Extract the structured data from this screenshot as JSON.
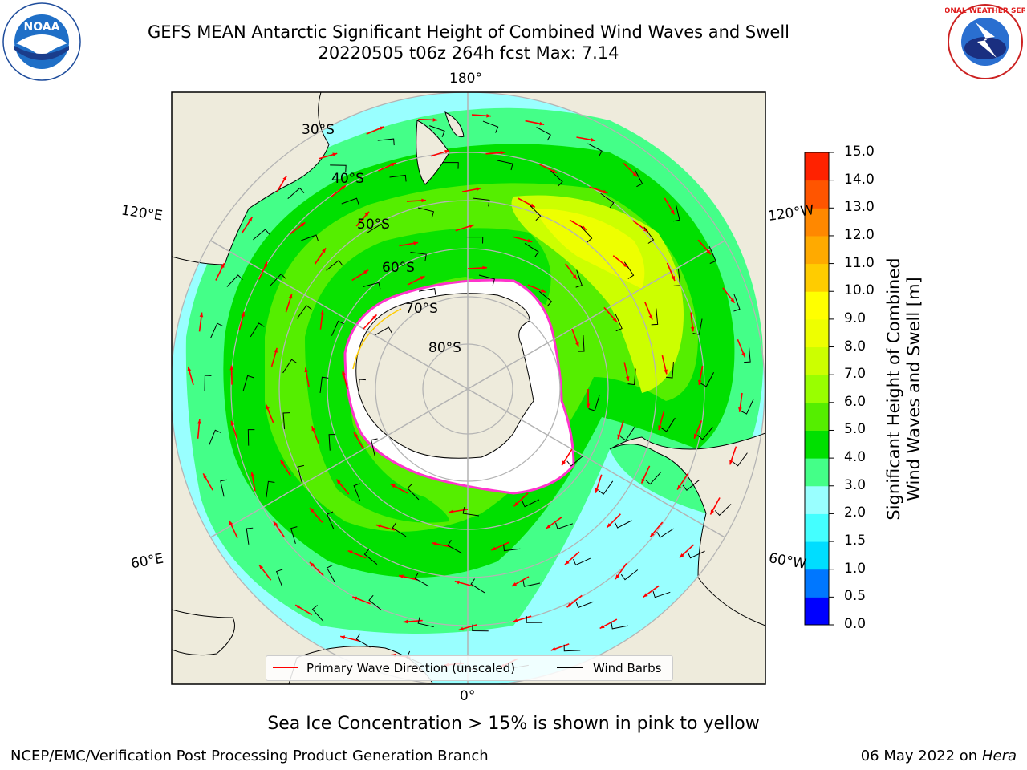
{
  "title": {
    "line1": "GEFS MEAN Antarctic Significant Height of Combined Wind Waves and Swell",
    "line2": "20220505 t06z 264h fcst   Max: 7.14"
  },
  "logos": {
    "noaa": "NOAA",
    "nws": "NATIONAL WEATHER SERVICE"
  },
  "map": {
    "projection": "south-polar-stereographic",
    "lat_labels": [
      "30°S",
      "40°S",
      "50°S",
      "60°S",
      "70°S",
      "80°S"
    ],
    "lon_labels": {
      "top": "180°",
      "bottom": "0°",
      "left_upper": "120°E",
      "left_lower": "60°E",
      "right_upper": "120°W",
      "right_lower": "60°W"
    },
    "colors": {
      "land": "#eeebdc",
      "ice": "#ffffff",
      "grid": "#b4b4b4",
      "ice_edge_pink": "#ff33cc",
      "ice_edge_yellow": "#ffcc00",
      "arrow": "#ff0000",
      "barb": "#000000"
    }
  },
  "colorbar": {
    "label_line1": "Significant Height of Combined",
    "label_line2": "Wind Waves and Swell [m]",
    "ticks": [
      "15.0",
      "14.0",
      "13.0",
      "12.0",
      "11.0",
      "10.0",
      "9.0",
      "8.0",
      "7.0",
      "6.0",
      "5.0",
      "4.0",
      "3.0",
      "2.0",
      "1.5",
      "1.0",
      "0.5",
      "0.0"
    ],
    "colors": [
      "#0000ff",
      "#0077ff",
      "#00ddff",
      "#44ffff",
      "#99ffff",
      "#44ff88",
      "#00e000",
      "#55ee00",
      "#99ff00",
      "#ccff00",
      "#eeff00",
      "#ffff00",
      "#ffcc00",
      "#ffaa00",
      "#ff8800",
      "#ff5500",
      "#ff2200"
    ]
  },
  "legend": {
    "primary": "Primary Wave Direction (unscaled)",
    "barbs": "Wind Barbs"
  },
  "subtitle": "Sea Ice Concentration > 15% is shown in pink to yellow",
  "footer": {
    "left": "NCEP/EMC/Verification Post Processing Product Generation Branch",
    "right_date": "06 May 2022 on",
    "right_host": "Hera"
  }
}
